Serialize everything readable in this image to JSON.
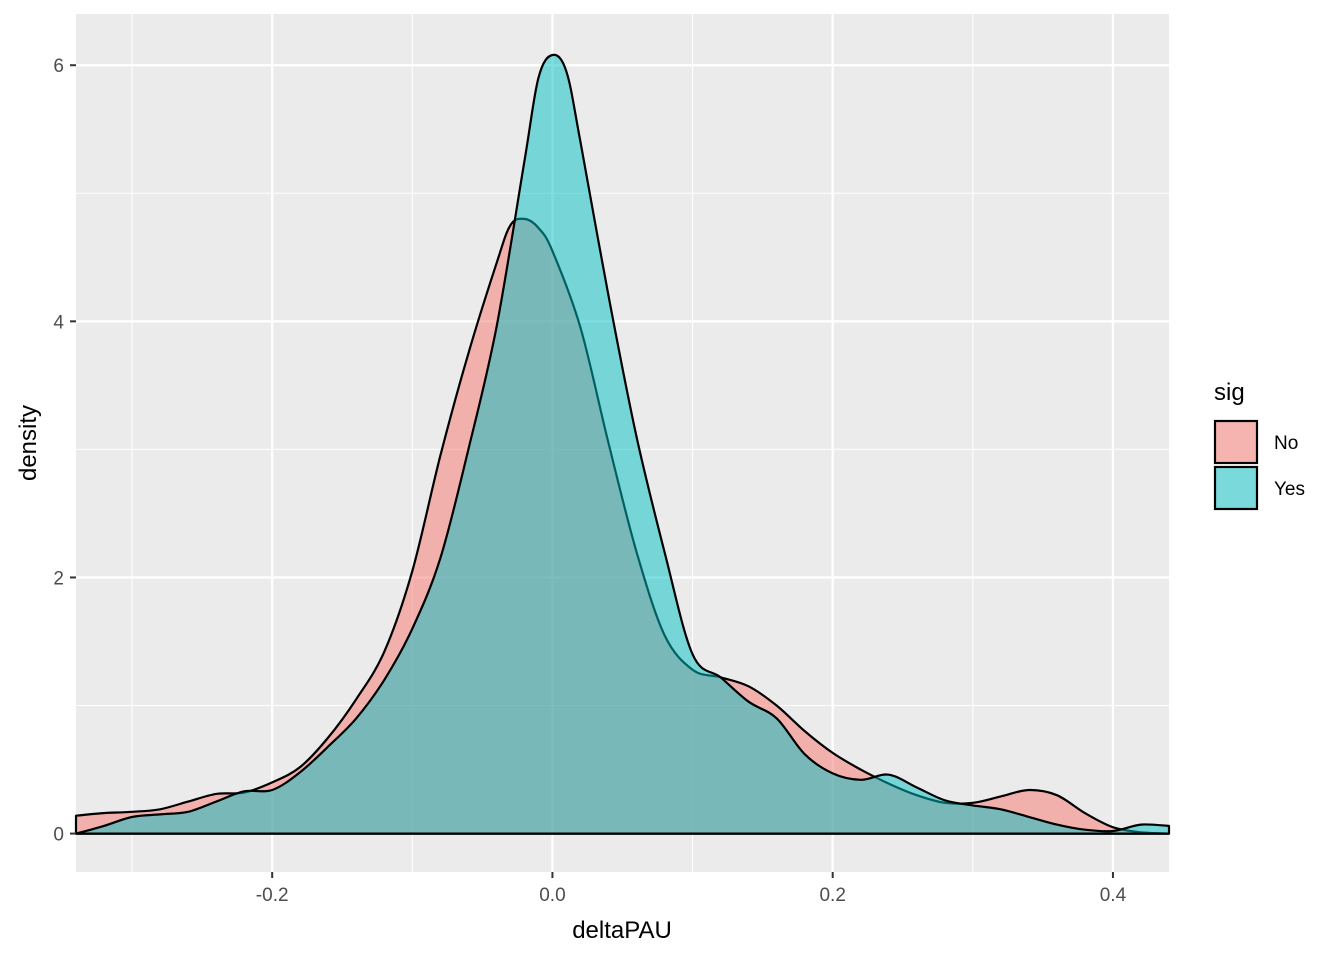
{
  "chart_data": {
    "type": "area",
    "subtype": "density",
    "title": "",
    "xlabel": "deltaPAU",
    "ylabel": "density",
    "xlim": [
      -0.34,
      0.44
    ],
    "ylim": [
      -0.3,
      6.4
    ],
    "x_ticks": [
      -0.2,
      0.0,
      0.2,
      0.4
    ],
    "x_tick_labels": [
      "-0.2",
      "0.0",
      "0.2",
      "0.4"
    ],
    "y_ticks": [
      0,
      2,
      4,
      6
    ],
    "y_tick_labels": [
      "0",
      "2",
      "4",
      "6"
    ],
    "grid": true,
    "legend": {
      "title": "sig",
      "position": "right"
    },
    "series": [
      {
        "name": "No",
        "color": "#F8766D",
        "fill_opacity": 0.5,
        "points": [
          [
            -0.34,
            0.14
          ],
          [
            -0.32,
            0.16
          ],
          [
            -0.3,
            0.17
          ],
          [
            -0.28,
            0.19
          ],
          [
            -0.26,
            0.25
          ],
          [
            -0.24,
            0.31
          ],
          [
            -0.22,
            0.32
          ],
          [
            -0.2,
            0.4
          ],
          [
            -0.18,
            0.52
          ],
          [
            -0.16,
            0.75
          ],
          [
            -0.14,
            1.05
          ],
          [
            -0.12,
            1.42
          ],
          [
            -0.1,
            2.05
          ],
          [
            -0.08,
            2.95
          ],
          [
            -0.06,
            3.75
          ],
          [
            -0.04,
            4.45
          ],
          [
            -0.03,
            4.75
          ],
          [
            -0.02,
            4.8
          ],
          [
            -0.01,
            4.73
          ],
          [
            0.0,
            4.55
          ],
          [
            0.02,
            3.95
          ],
          [
            0.04,
            3.05
          ],
          [
            0.06,
            2.2
          ],
          [
            0.08,
            1.55
          ],
          [
            0.1,
            1.28
          ],
          [
            0.12,
            1.22
          ],
          [
            0.14,
            1.15
          ],
          [
            0.16,
            1.0
          ],
          [
            0.18,
            0.8
          ],
          [
            0.2,
            0.63
          ],
          [
            0.22,
            0.5
          ],
          [
            0.24,
            0.39
          ],
          [
            0.26,
            0.3
          ],
          [
            0.28,
            0.24
          ],
          [
            0.3,
            0.24
          ],
          [
            0.32,
            0.29
          ],
          [
            0.34,
            0.34
          ],
          [
            0.36,
            0.3
          ],
          [
            0.38,
            0.16
          ],
          [
            0.4,
            0.05
          ],
          [
            0.42,
            0.01
          ],
          [
            0.44,
            0.0
          ]
        ]
      },
      {
        "name": "Yes",
        "color": "#00BFC4",
        "fill_opacity": 0.5,
        "points": [
          [
            -0.34,
            0.0
          ],
          [
            -0.32,
            0.06
          ],
          [
            -0.3,
            0.13
          ],
          [
            -0.28,
            0.15
          ],
          [
            -0.26,
            0.17
          ],
          [
            -0.24,
            0.25
          ],
          [
            -0.22,
            0.33
          ],
          [
            -0.2,
            0.34
          ],
          [
            -0.18,
            0.48
          ],
          [
            -0.16,
            0.68
          ],
          [
            -0.14,
            0.9
          ],
          [
            -0.12,
            1.2
          ],
          [
            -0.1,
            1.6
          ],
          [
            -0.08,
            2.15
          ],
          [
            -0.06,
            3.0
          ],
          [
            -0.04,
            3.95
          ],
          [
            -0.02,
            5.25
          ],
          [
            -0.01,
            5.9
          ],
          [
            0.0,
            6.08
          ],
          [
            0.01,
            5.95
          ],
          [
            0.02,
            5.4
          ],
          [
            0.04,
            4.2
          ],
          [
            0.06,
            3.1
          ],
          [
            0.08,
            2.2
          ],
          [
            0.1,
            1.4
          ],
          [
            0.12,
            1.22
          ],
          [
            0.14,
            1.03
          ],
          [
            0.16,
            0.9
          ],
          [
            0.18,
            0.62
          ],
          [
            0.2,
            0.47
          ],
          [
            0.22,
            0.42
          ],
          [
            0.24,
            0.46
          ],
          [
            0.26,
            0.36
          ],
          [
            0.28,
            0.26
          ],
          [
            0.3,
            0.22
          ],
          [
            0.32,
            0.19
          ],
          [
            0.34,
            0.13
          ],
          [
            0.36,
            0.07
          ],
          [
            0.38,
            0.03
          ],
          [
            0.4,
            0.02
          ],
          [
            0.42,
            0.07
          ],
          [
            0.44,
            0.06
          ]
        ]
      }
    ]
  }
}
